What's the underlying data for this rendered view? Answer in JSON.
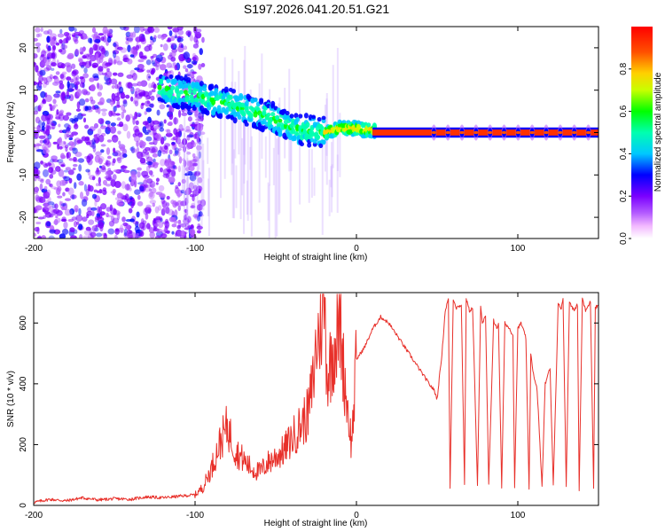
{
  "figure_title": "S197.2026.041.20.51.G21",
  "colors": {
    "line": "#e8302a",
    "axis": "#000000",
    "colormap": [
      "#ffffff",
      "#ff00ff",
      "#8000ff",
      "#0000ff",
      "#00ffff",
      "#00ff00",
      "#ffff00",
      "#ff8000",
      "#ff0000"
    ]
  },
  "chart_data": [
    {
      "type": "heatmap",
      "title": "",
      "xlabel": "Height of straight line (km)",
      "ylabel": "Frequency (Hz)",
      "xlim": [
        -200,
        150
      ],
      "ylim": [
        -25,
        25
      ],
      "xticks": [
        -200,
        -100,
        0,
        100
      ],
      "yticks": [
        -20,
        -10,
        0,
        10,
        20
      ],
      "colorbar": {
        "label": "Normalized spectral amplitude",
        "range": [
          0,
          1
        ],
        "ticks": [
          "0.0",
          "0.2",
          "0.4",
          "0.6",
          "0.8"
        ]
      },
      "ridge": {
        "description_free": true,
        "height_km": [
          -122,
          -110,
          -100,
          -90,
          -80,
          -70,
          -60,
          -50,
          -40,
          -30,
          -20,
          -10,
          0,
          10,
          20,
          150
        ],
        "frequency_hz": [
          10.5,
          9.5,
          9,
          7.5,
          7,
          5.5,
          4.5,
          3,
          1,
          0.5,
          0,
          1,
          1,
          0.5,
          0,
          0
        ]
      }
    },
    {
      "type": "line",
      "title": "",
      "xlabel": "Height of straight line (km)",
      "ylabel": "SNR (10 * v/v)",
      "xlim": [
        -200,
        150
      ],
      "ylim": [
        0,
        700
      ],
      "xticks": [
        -200,
        -100,
        0,
        100
      ],
      "yticks": [
        0,
        200,
        400,
        600
      ],
      "series": [
        {
          "name": "SNR",
          "x": [
            -200,
            -190,
            -180,
            -170,
            -160,
            -150,
            -140,
            -130,
            -120,
            -110,
            -100,
            -95,
            -90,
            -85,
            -80,
            -75,
            -70,
            -65,
            -60,
            -55,
            -50,
            -45,
            -40,
            -35,
            -30,
            -27,
            -25,
            -22,
            -20,
            -18,
            -15,
            -12,
            -10,
            -8,
            -5,
            -3,
            0,
            5,
            10,
            15,
            20,
            25,
            30,
            35,
            40,
            45,
            48,
            50,
            53,
            55,
            57,
            58,
            60,
            62,
            65,
            67,
            68,
            70,
            72,
            75,
            77,
            78,
            80,
            82,
            85,
            87,
            88,
            90,
            92,
            95,
            97,
            98,
            100,
            102,
            105,
            107,
            108,
            110,
            112,
            115,
            117,
            118,
            120,
            122,
            125,
            127,
            128,
            130,
            132,
            135,
            137,
            138,
            140,
            142,
            145,
            147,
            148,
            150
          ],
          "y": [
            10,
            20,
            15,
            25,
            18,
            22,
            20,
            28,
            25,
            30,
            35,
            60,
            120,
            200,
            260,
            180,
            150,
            120,
            110,
            140,
            160,
            180,
            220,
            260,
            300,
            400,
            520,
            600,
            690,
            420,
            500,
            560,
            600,
            450,
            300,
            200,
            480,
            520,
            580,
            620,
            600,
            560,
            520,
            480,
            440,
            400,
            380,
            350,
            500,
            640,
            680,
            60,
            680,
            650,
            660,
            70,
            680,
            640,
            650,
            60,
            660,
            600,
            620,
            70,
            610,
            580,
            600,
            60,
            600,
            580,
            560,
            60,
            580,
            600,
            550,
            50,
            500,
            420,
            380,
            60,
            400,
            420,
            450,
            70,
            660,
            650,
            680,
            60,
            670,
            640,
            660,
            50,
            680,
            640,
            670,
            60,
            650,
            660
          ]
        }
      ]
    }
  ]
}
